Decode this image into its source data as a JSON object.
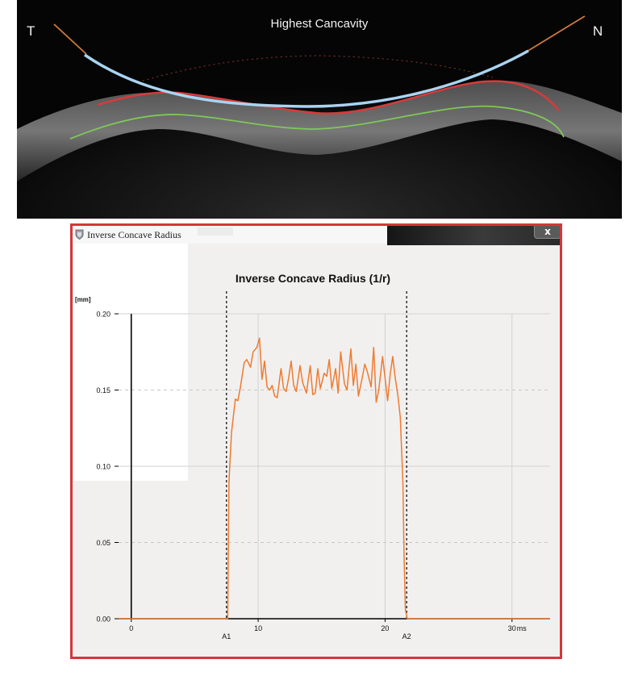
{
  "oct_image": {
    "title": "Highest Cancavity",
    "left_label": "T",
    "right_label": "N"
  },
  "window": {
    "title": "Inverse Concave Radius",
    "close_label": "x"
  },
  "chart_data": {
    "type": "line",
    "title": "Inverse Concave Radius (1/r)",
    "ylabel": "[mm]",
    "xlabel": "",
    "xlim": [
      -1,
      33
    ],
    "ylim": [
      0,
      0.2
    ],
    "x_ticks": [
      "0",
      "10",
      "20",
      "30"
    ],
    "x_unit": "ms",
    "y_ticks": [
      "0.00",
      "0.05",
      "0.10",
      "0.15",
      "0.20"
    ],
    "grid": true,
    "line_color": "#f07a30",
    "markers": [
      {
        "label": "A1",
        "x": 7.5
      },
      {
        "label": "A2",
        "x": 21.7
      }
    ],
    "series": [
      {
        "x": [
          -1,
          7.6,
          7.7,
          7.9,
          8.2,
          8.4,
          8.6,
          8.9,
          9.1,
          9.4,
          9.6,
          9.9,
          10.1,
          10.3,
          10.5,
          10.7,
          10.9,
          11.1,
          11.3,
          11.5,
          11.8,
          12.0,
          12.2,
          12.4,
          12.6,
          12.8,
          13.0,
          13.3,
          13.5,
          13.8,
          14.1,
          14.3,
          14.5,
          14.7,
          14.9,
          15.2,
          15.4,
          15.6,
          15.8,
          16.1,
          16.3,
          16.5,
          16.8,
          17.0,
          17.3,
          17.5,
          17.7,
          17.9,
          18.2,
          18.4,
          18.6,
          18.9,
          19.1,
          19.3,
          19.5,
          19.8,
          20.0,
          20.2,
          20.4,
          20.6,
          20.8,
          21.0,
          21.2,
          21.4,
          21.5,
          21.6,
          21.75,
          33
        ],
        "y": [
          0,
          0,
          0.09,
          0.122,
          0.144,
          0.143,
          0.152,
          0.168,
          0.17,
          0.165,
          0.175,
          0.178,
          0.184,
          0.157,
          0.169,
          0.152,
          0.15,
          0.153,
          0.146,
          0.145,
          0.164,
          0.151,
          0.149,
          0.158,
          0.169,
          0.153,
          0.149,
          0.166,
          0.155,
          0.148,
          0.166,
          0.147,
          0.148,
          0.164,
          0.151,
          0.161,
          0.159,
          0.17,
          0.151,
          0.164,
          0.148,
          0.175,
          0.154,
          0.15,
          0.177,
          0.153,
          0.167,
          0.146,
          0.158,
          0.167,
          0.162,
          0.152,
          0.178,
          0.142,
          0.15,
          0.172,
          0.158,
          0.143,
          0.16,
          0.172,
          0.158,
          0.147,
          0.132,
          0.09,
          0.04,
          0.006,
          0,
          0
        ]
      }
    ]
  }
}
